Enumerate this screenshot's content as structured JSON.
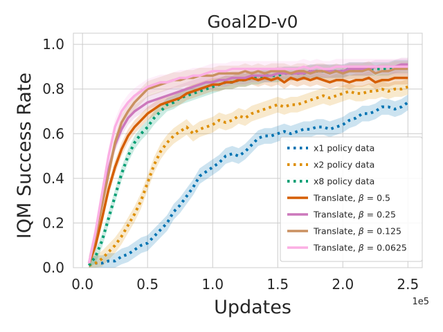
{
  "chart_data": {
    "type": "line",
    "title": "Goal2D-v0",
    "xlabel": "Updates",
    "ylabel": "IQM Success Rate",
    "x_offset_label": "1e5",
    "xlim": [
      -0.07,
      2.61
    ],
    "ylim": [
      0.0,
      1.05
    ],
    "xticks": [
      0.0,
      0.5,
      1.0,
      1.5,
      2.0,
      2.5
    ],
    "xtick_labels": [
      "0.0",
      "0.5",
      "1.0",
      "1.5",
      "2.0",
      "2.5"
    ],
    "yticks": [
      0.0,
      0.2,
      0.4,
      0.6,
      0.8,
      1.0
    ],
    "ytick_labels": [
      "0.0",
      "0.2",
      "0.4",
      "0.6",
      "0.8",
      "1.0"
    ],
    "grid": true,
    "legend_position": "lower-right",
    "x_samples": [
      0.05,
      0.1,
      0.15,
      0.2,
      0.25,
      0.3,
      0.35,
      0.4,
      0.45,
      0.5,
      0.55,
      0.6,
      0.65,
      0.7,
      0.75,
      0.8,
      0.85,
      0.9,
      0.95,
      1.0,
      1.05,
      1.1,
      1.15,
      1.2,
      1.25,
      1.3,
      1.35,
      1.4,
      1.45,
      1.5,
      1.55,
      1.6,
      1.65,
      1.7,
      1.75,
      1.8,
      1.85,
      1.9,
      1.95,
      2.0,
      2.05,
      2.1,
      2.15,
      2.2,
      2.25,
      2.3,
      2.35,
      2.4,
      2.45,
      2.5
    ],
    "series": [
      {
        "name": "x1 policy data",
        "legend_label": "x1 policy data",
        "color": "#0173b2",
        "dash": "dotted",
        "band": 0.035,
        "values": [
          0.01,
          0.02,
          0.02,
          0.03,
          0.03,
          0.05,
          0.06,
          0.08,
          0.1,
          0.11,
          0.14,
          0.17,
          0.2,
          0.25,
          0.28,
          0.32,
          0.36,
          0.41,
          0.43,
          0.45,
          0.47,
          0.5,
          0.51,
          0.5,
          0.52,
          0.55,
          0.58,
          0.59,
          0.59,
          0.6,
          0.61,
          0.6,
          0.61,
          0.62,
          0.62,
          0.63,
          0.63,
          0.62,
          0.63,
          0.64,
          0.66,
          0.67,
          0.69,
          0.69,
          0.7,
          0.72,
          0.72,
          0.71,
          0.72,
          0.74
        ]
      },
      {
        "name": "x2 policy data",
        "legend_label": "x2 policy data",
        "color": "#de8f05",
        "dash": "dotted",
        "band": 0.035,
        "values": [
          0.01,
          0.02,
          0.04,
          0.07,
          0.1,
          0.14,
          0.19,
          0.24,
          0.3,
          0.38,
          0.46,
          0.52,
          0.56,
          0.59,
          0.61,
          0.63,
          0.6,
          0.62,
          0.63,
          0.64,
          0.66,
          0.65,
          0.66,
          0.68,
          0.67,
          0.69,
          0.7,
          0.71,
          0.72,
          0.73,
          0.72,
          0.73,
          0.73,
          0.74,
          0.75,
          0.76,
          0.77,
          0.76,
          0.77,
          0.78,
          0.79,
          0.78,
          0.78,
          0.79,
          0.79,
          0.8,
          0.79,
          0.8,
          0.8,
          0.81
        ]
      },
      {
        "name": "x8 policy data",
        "legend_label": "x8 policy data",
        "color": "#029e73",
        "dash": "dotted",
        "band": 0.03,
        "values": [
          0.01,
          0.05,
          0.12,
          0.22,
          0.32,
          0.42,
          0.5,
          0.56,
          0.6,
          0.63,
          0.67,
          0.7,
          0.73,
          0.74,
          0.76,
          0.77,
          0.78,
          0.79,
          0.8,
          0.81,
          0.82,
          0.83,
          0.83,
          0.84,
          0.84,
          0.85,
          0.85,
          0.86,
          0.86,
          0.86,
          0.87,
          0.87,
          0.87,
          0.87,
          0.88,
          0.88,
          0.88,
          0.88,
          0.88,
          0.88,
          0.89,
          0.89,
          0.89,
          0.89,
          0.89,
          0.89,
          0.89,
          0.9,
          0.9,
          0.9
        ]
      },
      {
        "name": "Translate, β=0.5",
        "legend_prefix": "Translate, ",
        "legend_var": "β",
        "legend_suffix": " = 0.5",
        "color": "#d55e00",
        "dash": "solid",
        "band": 0.03,
        "values": [
          0.02,
          0.1,
          0.22,
          0.35,
          0.45,
          0.53,
          0.59,
          0.63,
          0.66,
          0.69,
          0.71,
          0.73,
          0.74,
          0.75,
          0.76,
          0.78,
          0.79,
          0.8,
          0.81,
          0.82,
          0.82,
          0.83,
          0.83,
          0.84,
          0.84,
          0.85,
          0.84,
          0.85,
          0.84,
          0.85,
          0.83,
          0.85,
          0.84,
          0.85,
          0.84,
          0.85,
          0.84,
          0.83,
          0.84,
          0.84,
          0.83,
          0.84,
          0.84,
          0.85,
          0.83,
          0.84,
          0.84,
          0.85,
          0.85,
          0.85
        ]
      },
      {
        "name": "Translate, β=0.25",
        "legend_prefix": "Translate, ",
        "legend_var": "β",
        "legend_suffix": " = 0.25",
        "color": "#cc78bc",
        "dash": "solid",
        "band": 0.03,
        "values": [
          0.02,
          0.15,
          0.3,
          0.44,
          0.55,
          0.62,
          0.67,
          0.7,
          0.72,
          0.74,
          0.75,
          0.76,
          0.77,
          0.78,
          0.79,
          0.8,
          0.81,
          0.82,
          0.83,
          0.83,
          0.84,
          0.84,
          0.85,
          0.85,
          0.85,
          0.86,
          0.86,
          0.86,
          0.86,
          0.87,
          0.87,
          0.87,
          0.87,
          0.87,
          0.88,
          0.88,
          0.88,
          0.88,
          0.88,
          0.88,
          0.89,
          0.89,
          0.89,
          0.89,
          0.9,
          0.9,
          0.9,
          0.9,
          0.91,
          0.91
        ]
      },
      {
        "name": "Translate, β=0.125",
        "legend_prefix": "Translate, ",
        "legend_var": "β",
        "legend_suffix": " = 0.125",
        "color": "#ca9161",
        "dash": "solid",
        "band": 0.035,
        "values": [
          0.02,
          0.14,
          0.28,
          0.42,
          0.56,
          0.65,
          0.7,
          0.74,
          0.77,
          0.8,
          0.81,
          0.82,
          0.83,
          0.84,
          0.84,
          0.85,
          0.85,
          0.86,
          0.86,
          0.86,
          0.87,
          0.87,
          0.87,
          0.87,
          0.88,
          0.87,
          0.88,
          0.87,
          0.88,
          0.88,
          0.88,
          0.87,
          0.88,
          0.88,
          0.87,
          0.88,
          0.88,
          0.87,
          0.88,
          0.87,
          0.88,
          0.88,
          0.88,
          0.89,
          0.87,
          0.88,
          0.88,
          0.89,
          0.89,
          0.89
        ]
      },
      {
        "name": "Translate, β=0.0625",
        "legend_prefix": "Translate, ",
        "legend_var": "β",
        "legend_suffix": " = 0.0625",
        "color": "#fbafe4",
        "dash": "solid",
        "band": 0.035,
        "values": [
          0.02,
          0.16,
          0.33,
          0.5,
          0.63,
          0.7,
          0.74,
          0.77,
          0.79,
          0.81,
          0.82,
          0.83,
          0.83,
          0.84,
          0.85,
          0.85,
          0.86,
          0.86,
          0.87,
          0.88,
          0.88,
          0.88,
          0.89,
          0.89,
          0.89,
          0.89,
          0.89,
          0.89,
          0.89,
          0.89,
          0.89,
          0.89,
          0.89,
          0.9,
          0.89,
          0.9,
          0.89,
          0.89,
          0.9,
          0.9,
          0.9,
          0.9,
          0.9,
          0.9,
          0.9,
          0.9,
          0.9,
          0.9,
          0.9,
          0.9
        ]
      }
    ]
  }
}
